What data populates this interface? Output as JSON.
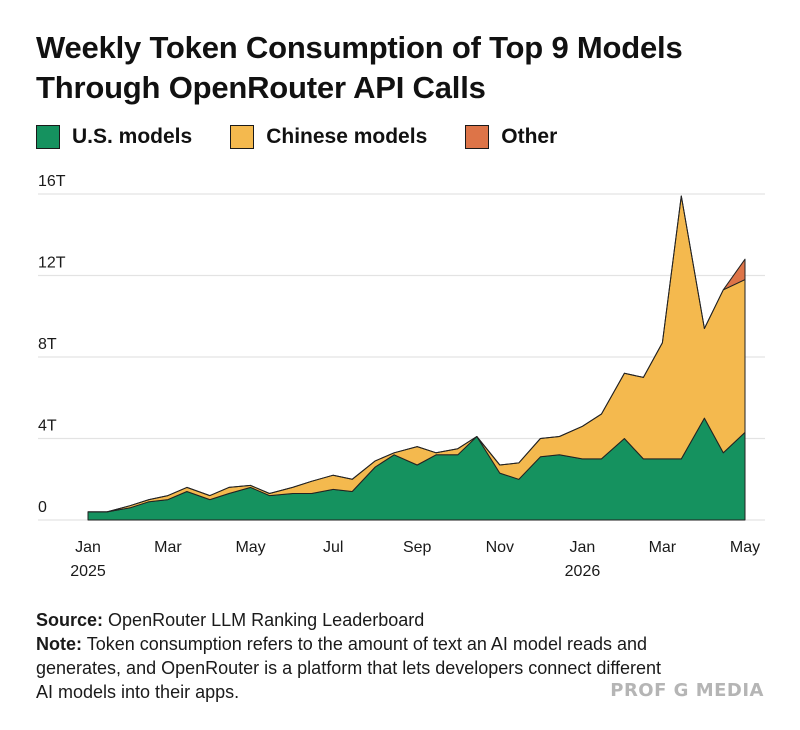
{
  "title": {
    "line1": "Weekly Token Consumption of Top 9 Models",
    "line2": "Through OpenRouter API Calls"
  },
  "legend": [
    {
      "label": "U.S. models",
      "color": "#15925f"
    },
    {
      "label": "Chinese models",
      "color": "#f4b94e"
    },
    {
      "label": "Other",
      "color": "#dd7448"
    }
  ],
  "footer": {
    "source_label": "Source:",
    "source_text": "OpenRouter LLM Ranking Leaderboard",
    "note_label": "Note:",
    "note_text": "Token consumption refers to the amount of text an AI model reads and generates, and OpenRouter is a platform that lets developers connect different AI models into their apps."
  },
  "brand": "PROF G MEDIA",
  "chart_data": {
    "type": "area",
    "stacked": true,
    "title": "Weekly Token Consumption of Top 9 Models Through OpenRouter API Calls",
    "ylim": [
      0,
      16
    ],
    "y_ticks": [
      0,
      4,
      8,
      12,
      16
    ],
    "y_tick_labels": [
      "0",
      "4T",
      "8T",
      "12T",
      "16T"
    ],
    "x_ticks": [
      {
        "label": "Jan",
        "sub": "2025",
        "x": "2025-01"
      },
      {
        "label": "Mar",
        "sub": "",
        "x": "2025-03"
      },
      {
        "label": "May",
        "sub": "",
        "x": "2025-05"
      },
      {
        "label": "Jul",
        "sub": "",
        "x": "2025-07"
      },
      {
        "label": "Sep",
        "sub": "",
        "x": "2025-09"
      },
      {
        "label": "Nov",
        "sub": "",
        "x": "2025-11"
      },
      {
        "label": "Jan",
        "sub": "2026",
        "x": "2026-01"
      },
      {
        "label": "Mar",
        "sub": "",
        "x": "2026-03"
      },
      {
        "label": "May",
        "sub": "",
        "x": "2026-05"
      }
    ],
    "x": [
      "2025-01-01",
      "2025-01-15",
      "2025-02-01",
      "2025-02-15",
      "2025-03-01",
      "2025-03-15",
      "2025-04-01",
      "2025-04-15",
      "2025-05-01",
      "2025-05-15",
      "2025-06-01",
      "2025-06-15",
      "2025-07-01",
      "2025-07-15",
      "2025-08-01",
      "2025-08-15",
      "2025-09-01",
      "2025-09-15",
      "2025-10-01",
      "2025-10-15",
      "2025-11-01",
      "2025-11-15",
      "2025-12-01",
      "2025-12-15",
      "2026-01-01",
      "2026-01-15",
      "2026-02-01",
      "2026-02-15",
      "2026-03-01",
      "2026-03-15",
      "2026-04-01",
      "2026-04-15",
      "2026-05-01"
    ],
    "series": [
      {
        "name": "U.S. models",
        "color": "#15925f",
        "values": [
          0.4,
          0.4,
          0.6,
          0.9,
          1.0,
          1.4,
          1.0,
          1.3,
          1.6,
          1.2,
          1.3,
          1.3,
          1.5,
          1.4,
          2.6,
          3.2,
          2.7,
          3.2,
          3.2,
          4.1,
          2.3,
          2.0,
          3.1,
          3.2,
          3.0,
          3.0,
          4.0,
          3.0,
          3.0,
          3.0,
          5.0,
          3.3,
          4.3
        ]
      },
      {
        "name": "Chinese models",
        "color": "#f4b94e",
        "values": [
          0.0,
          0.0,
          0.1,
          0.1,
          0.2,
          0.2,
          0.2,
          0.3,
          0.1,
          0.1,
          0.3,
          0.6,
          0.7,
          0.6,
          0.3,
          0.1,
          0.9,
          0.1,
          0.3,
          0.0,
          0.4,
          0.8,
          0.9,
          0.9,
          1.6,
          2.2,
          3.2,
          4.0,
          5.7,
          12.9,
          4.4,
          8.0,
          7.5
        ]
      },
      {
        "name": "Other",
        "color": "#dd7448",
        "values": [
          0,
          0,
          0,
          0,
          0,
          0,
          0,
          0,
          0,
          0,
          0,
          0,
          0,
          0,
          0,
          0,
          0,
          0,
          0,
          0,
          0,
          0,
          0,
          0,
          0,
          0,
          0,
          0,
          0,
          0,
          0,
          0,
          1.0
        ]
      }
    ]
  }
}
